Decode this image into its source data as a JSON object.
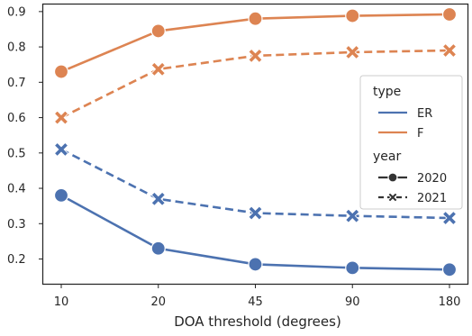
{
  "chart_data": {
    "type": "line",
    "categories": [
      "10",
      "20",
      "45",
      "90",
      "180"
    ],
    "xlabel": "DOA threshold (degrees)",
    "ylabel": "",
    "ylim": [
      0.13,
      0.92
    ],
    "yticks": [
      "0.2",
      "0.3",
      "0.4",
      "0.5",
      "0.6",
      "0.7",
      "0.8",
      "0.9"
    ],
    "grid": false,
    "legend_position": "center-right",
    "series": [
      {
        "type": "ER",
        "year": "2020",
        "color": "#4c72b0",
        "dash": "solid",
        "marker": "circle",
        "values": [
          0.38,
          0.23,
          0.185,
          0.175,
          0.17
        ]
      },
      {
        "type": "ER",
        "year": "2021",
        "color": "#4c72b0",
        "dash": "dashed",
        "marker": "x",
        "values": [
          0.51,
          0.37,
          0.33,
          0.322,
          0.316
        ]
      },
      {
        "type": "F",
        "year": "2020",
        "color": "#dd8452",
        "dash": "solid",
        "marker": "circle",
        "values": [
          0.73,
          0.845,
          0.88,
          0.888,
          0.892
        ]
      },
      {
        "type": "F",
        "year": "2021",
        "color": "#dd8452",
        "dash": "dashed",
        "marker": "x",
        "values": [
          0.6,
          0.737,
          0.775,
          0.785,
          0.79
        ]
      }
    ],
    "legend": {
      "sections": [
        {
          "title": "type",
          "entries": [
            {
              "label": "ER",
              "color": "#4c72b0",
              "dash": "solid",
              "marker": "none"
            },
            {
              "label": "F",
              "color": "#dd8452",
              "dash": "solid",
              "marker": "none"
            }
          ]
        },
        {
          "title": "year",
          "entries": [
            {
              "label": "2020",
              "color": "#333333",
              "dash": "solid",
              "marker": "circle"
            },
            {
              "label": "2021",
              "color": "#333333",
              "dash": "dashed",
              "marker": "x"
            }
          ]
        }
      ]
    }
  }
}
